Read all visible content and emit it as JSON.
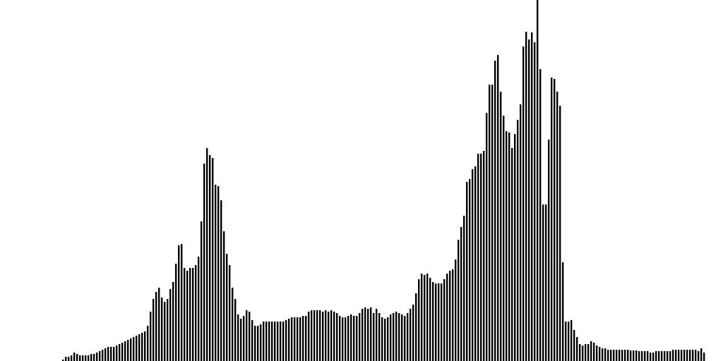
{
  "chart_data": {
    "type": "bar",
    "color": "#000000",
    "ylim": [
      0,
      512
    ],
    "values": [
      0,
      0,
      0,
      0,
      0,
      0,
      0,
      0,
      0,
      0,
      0,
      0,
      0,
      0,
      0,
      0,
      0,
      0,
      0,
      0,
      0,
      0,
      2,
      6,
      6,
      8,
      12,
      10,
      8,
      8,
      8,
      8,
      10,
      10,
      12,
      14,
      16,
      18,
      20,
      20,
      20,
      22,
      24,
      26,
      28,
      30,
      32,
      34,
      36,
      38,
      40,
      42,
      50,
      70,
      88,
      98,
      104,
      90,
      84,
      88,
      102,
      112,
      138,
      164,
      166,
      132,
      128,
      132,
      132,
      136,
      148,
      198,
      280,
      302,
      292,
      288,
      250,
      248,
      228,
      184,
      152,
      136,
      104,
      88,
      66,
      60,
      64,
      72,
      70,
      58,
      50,
      50,
      52,
      56,
      56,
      56,
      56,
      56,
      56,
      56,
      56,
      58,
      60,
      62,
      62,
      62,
      62,
      64,
      64,
      70,
      72,
      72,
      72,
      72,
      70,
      72,
      70,
      72,
      70,
      68,
      64,
      62,
      62,
      64,
      66,
      64,
      64,
      68,
      74,
      76,
      74,
      76,
      68,
      74,
      68,
      62,
      60,
      62,
      66,
      68,
      70,
      68,
      66,
      64,
      68,
      74,
      80,
      96,
      116,
      124,
      122,
      124,
      118,
      112,
      110,
      110,
      110,
      116,
      124,
      128,
      130,
      144,
      172,
      190,
      206,
      254,
      258,
      272,
      276,
      294,
      294,
      298,
      352,
      392,
      392,
      426,
      434,
      382,
      348,
      326,
      324,
      302,
      322,
      342,
      364,
      446,
      467,
      456,
      466,
      452,
      512,
      414,
      222,
      222,
      314,
      402,
      400,
      382,
      362,
      140,
      56,
      56,
      58,
      44,
      34,
      24,
      22,
      24,
      24,
      28,
      26,
      22,
      20,
      18,
      18,
      16,
      16,
      16,
      16,
      16,
      16,
      16,
      16,
      15,
      15,
      15,
      14,
      14,
      14,
      14,
      12,
      12,
      14,
      14,
      14,
      14,
      14,
      14,
      16,
      16,
      16,
      16,
      16,
      16,
      16,
      16,
      16,
      14,
      18,
      12,
      0,
      0,
      0,
      0,
      0,
      0
    ]
  }
}
